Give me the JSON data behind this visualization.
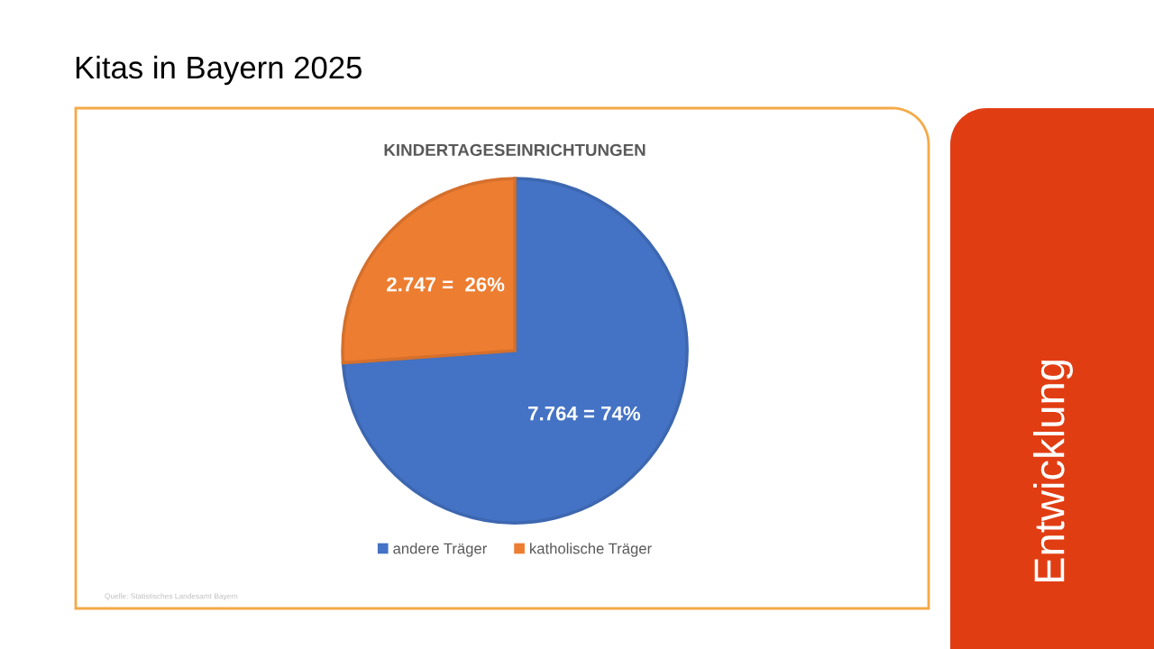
{
  "chart_data": {
    "type": "pie",
    "title": "Kitas in Bayern 2025",
    "subtitle": "KINDERTAGESEINRICHTUNGEN",
    "categories": [
      "andere Träger",
      "katholische Träger"
    ],
    "values": [
      7764,
      2747
    ],
    "colors": [
      "#4472c4",
      "#ed7d31"
    ],
    "value_labels": [
      "7.764 = 74%",
      "2.747 =  26%"
    ],
    "legend": "bottom",
    "annotations": [
      "Quelle: Statistisches Landesamt Bayern",
      "Entwicklung"
    ]
  }
}
